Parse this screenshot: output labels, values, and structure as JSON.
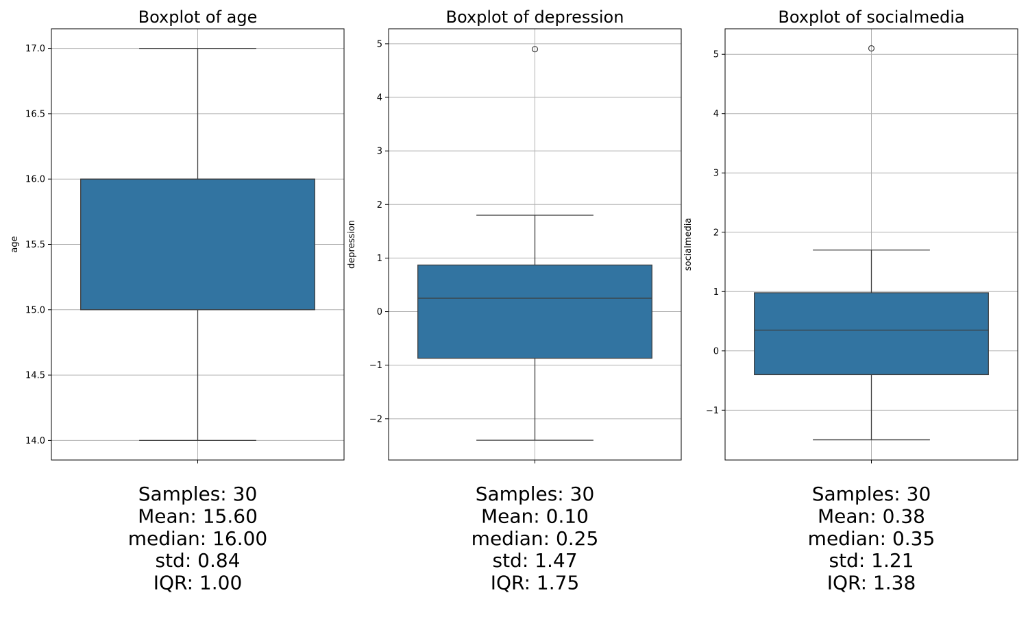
{
  "chart_data": [
    {
      "type": "box",
      "title": "Boxplot of age",
      "ylabel": "age",
      "ylim": [
        13.85,
        17.15
      ],
      "yticks": [
        14.0,
        14.5,
        15.0,
        15.5,
        16.0,
        16.5,
        17.0
      ],
      "ytick_labels": [
        "14.0",
        "14.5",
        "15.0",
        "15.5",
        "16.0",
        "16.5",
        "17.0"
      ],
      "grid": true,
      "box": {
        "whisker_low": 14.0,
        "q1": 15.0,
        "median": 16.0,
        "q3": 16.0,
        "whisker_high": 17.0,
        "outliers": []
      },
      "color": "#3274a1",
      "stats": [
        "Samples: 30",
        "Mean: 15.60",
        "median: 16.00",
        "std: 0.84",
        "IQR: 1.00"
      ]
    },
    {
      "type": "box",
      "title": "Boxplot of depression",
      "ylabel": "depression",
      "ylim": [
        -2.77,
        5.28
      ],
      "yticks": [
        -2,
        -1,
        0,
        1,
        2,
        3,
        4,
        5
      ],
      "ytick_labels": [
        "−2",
        "−1",
        "0",
        "1",
        "2",
        "3",
        "4",
        "5"
      ],
      "grid": true,
      "box": {
        "whisker_low": -2.4,
        "q1": -0.87,
        "median": 0.25,
        "q3": 0.87,
        "whisker_high": 1.8,
        "outliers": [
          4.9
        ]
      },
      "color": "#3274a1",
      "stats": [
        "Samples: 30",
        "Mean: 0.10",
        "median: 0.25",
        "std: 1.47",
        "IQR: 1.75"
      ]
    },
    {
      "type": "box",
      "title": "Boxplot of socialmedia",
      "ylabel": "socialmedia",
      "ylim": [
        -1.84,
        5.43
      ],
      "yticks": [
        -1,
        0,
        1,
        2,
        3,
        4,
        5
      ],
      "ytick_labels": [
        "−1",
        "0",
        "1",
        "2",
        "3",
        "4",
        "5"
      ],
      "grid": true,
      "box": {
        "whisker_low": -1.5,
        "q1": -0.4,
        "median": 0.35,
        "q3": 0.98,
        "whisker_high": 1.7,
        "outliers": [
          5.1
        ]
      },
      "color": "#3274a1",
      "stats": [
        "Samples: 30",
        "Mean: 0.38",
        "median: 0.35",
        "std: 1.21",
        "IQR: 1.38"
      ]
    }
  ]
}
